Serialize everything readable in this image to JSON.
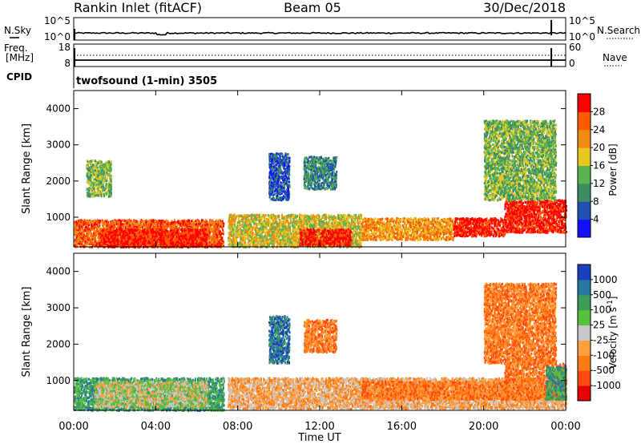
{
  "header": {
    "station": "Rankin Inlet (fitACF)",
    "beam": "Beam 05",
    "date": "30/Dec/2018"
  },
  "top_panel": {
    "left_label_1": "N.Sky",
    "left_label_2": "Freq.",
    "left_label_3": "[MHz]",
    "left_label_4": "CPID",
    "right_label_1": "N.Search",
    "right_label_2": "Nave",
    "nsky_ticks": [
      "10^5",
      "10^0"
    ],
    "nsearch_ticks": [
      "10^5",
      "10^0"
    ],
    "freq_ticks": [
      "18",
      "8"
    ],
    "nave_ticks": [
      "60",
      "0"
    ],
    "cpid_text": "twofsound (1-min) 3505"
  },
  "chart_data": [
    {
      "type": "heatmap",
      "title": "",
      "xlabel": "Time UT",
      "ylabel": "Slant Range [km]",
      "x_ticks": [
        "00:00",
        "04:00",
        "08:00",
        "12:00",
        "16:00",
        "20:00",
        "00:00"
      ],
      "y_ticks": [
        "1000",
        "2000",
        "3000",
        "4000"
      ],
      "ylim": [
        180,
        4500
      ],
      "colorbar": {
        "label": "Power [dB]",
        "ticks": [
          "4",
          "8",
          "12",
          "16",
          "20",
          "24",
          "28"
        ],
        "colors": [
          "#1010ff",
          "#2050b0",
          "#3c8c64",
          "#58b450",
          "#e8c820",
          "#f08c14",
          "#ff5a00",
          "#ff0000"
        ]
      },
      "regions": [
        {
          "t": [
            0,
            7.3
          ],
          "r": [
            200,
            950
          ],
          "level": 6
        },
        {
          "t": [
            1.3,
            6.5
          ],
          "r": [
            200,
            700
          ],
          "level": 7
        },
        {
          "t": [
            7.5,
            14
          ],
          "r": [
            200,
            1100
          ],
          "level": 4
        },
        {
          "t": [
            11,
            13.5
          ],
          "r": [
            250,
            700
          ],
          "level": 7
        },
        {
          "t": [
            14,
            18.5
          ],
          "r": [
            400,
            1000
          ],
          "level": 5
        },
        {
          "t": [
            18.5,
            21
          ],
          "r": [
            500,
            1000
          ],
          "level": 7
        },
        {
          "t": [
            21,
            24
          ],
          "r": [
            600,
            1500
          ],
          "level": 7
        },
        {
          "t": [
            9.5,
            10.5
          ],
          "r": [
            1500,
            2800
          ],
          "level": 1
        },
        {
          "t": [
            11.2,
            12.8
          ],
          "r": [
            1800,
            2700
          ],
          "level": 2
        },
        {
          "t": [
            20,
            23.5
          ],
          "r": [
            1500,
            3700
          ],
          "level": 3
        },
        {
          "t": [
            0.6,
            1.8
          ],
          "r": [
            1600,
            2600
          ],
          "level": 3
        }
      ]
    },
    {
      "type": "heatmap",
      "title": "",
      "xlabel": "Time UT",
      "ylabel": "Slant Range [km]",
      "x_ticks": [
        "00:00",
        "04:00",
        "08:00",
        "12:00",
        "16:00",
        "20:00",
        "00:00"
      ],
      "y_ticks": [
        "1000",
        "2000",
        "3000",
        "4000"
      ],
      "ylim": [
        180,
        4500
      ],
      "colorbar": {
        "label": "Velocity [m s^-1]",
        "unit_base": "Velocity [m s",
        "unit_exp": "-1",
        "unit_close": "]",
        "ticks": [
          "1000",
          "500",
          "100",
          "25",
          "-25",
          "-100",
          "-500",
          "-1000"
        ],
        "colors": [
          "#1a40c0",
          "#2878a0",
          "#3c9c58",
          "#58c040",
          "#c8c8c8",
          "#ffa040",
          "#ff7a10",
          "#ff4a10",
          "#e80000"
        ]
      },
      "regions": [
        {
          "t": [
            0,
            7.3
          ],
          "r": [
            200,
            1100
          ],
          "level": 2
        },
        {
          "t": [
            1,
            6.5
          ],
          "r": [
            300,
            1000
          ],
          "level": 4
        },
        {
          "t": [
            7.5,
            24
          ],
          "r": [
            250,
            1100
          ],
          "level": 5
        },
        {
          "t": [
            14,
            21
          ],
          "r": [
            500,
            1000
          ],
          "level": 6
        },
        {
          "t": [
            21,
            24
          ],
          "r": [
            500,
            1500
          ],
          "level": 6
        },
        {
          "t": [
            23,
            24
          ],
          "r": [
            500,
            1400
          ],
          "level": 2
        },
        {
          "t": [
            9.5,
            10.5
          ],
          "r": [
            1500,
            2800
          ],
          "level": 1
        },
        {
          "t": [
            11.2,
            12.8
          ],
          "r": [
            1800,
            2700
          ],
          "level": 6
        },
        {
          "t": [
            20,
            23.5
          ],
          "r": [
            1500,
            3700
          ],
          "level": 6
        }
      ]
    }
  ]
}
